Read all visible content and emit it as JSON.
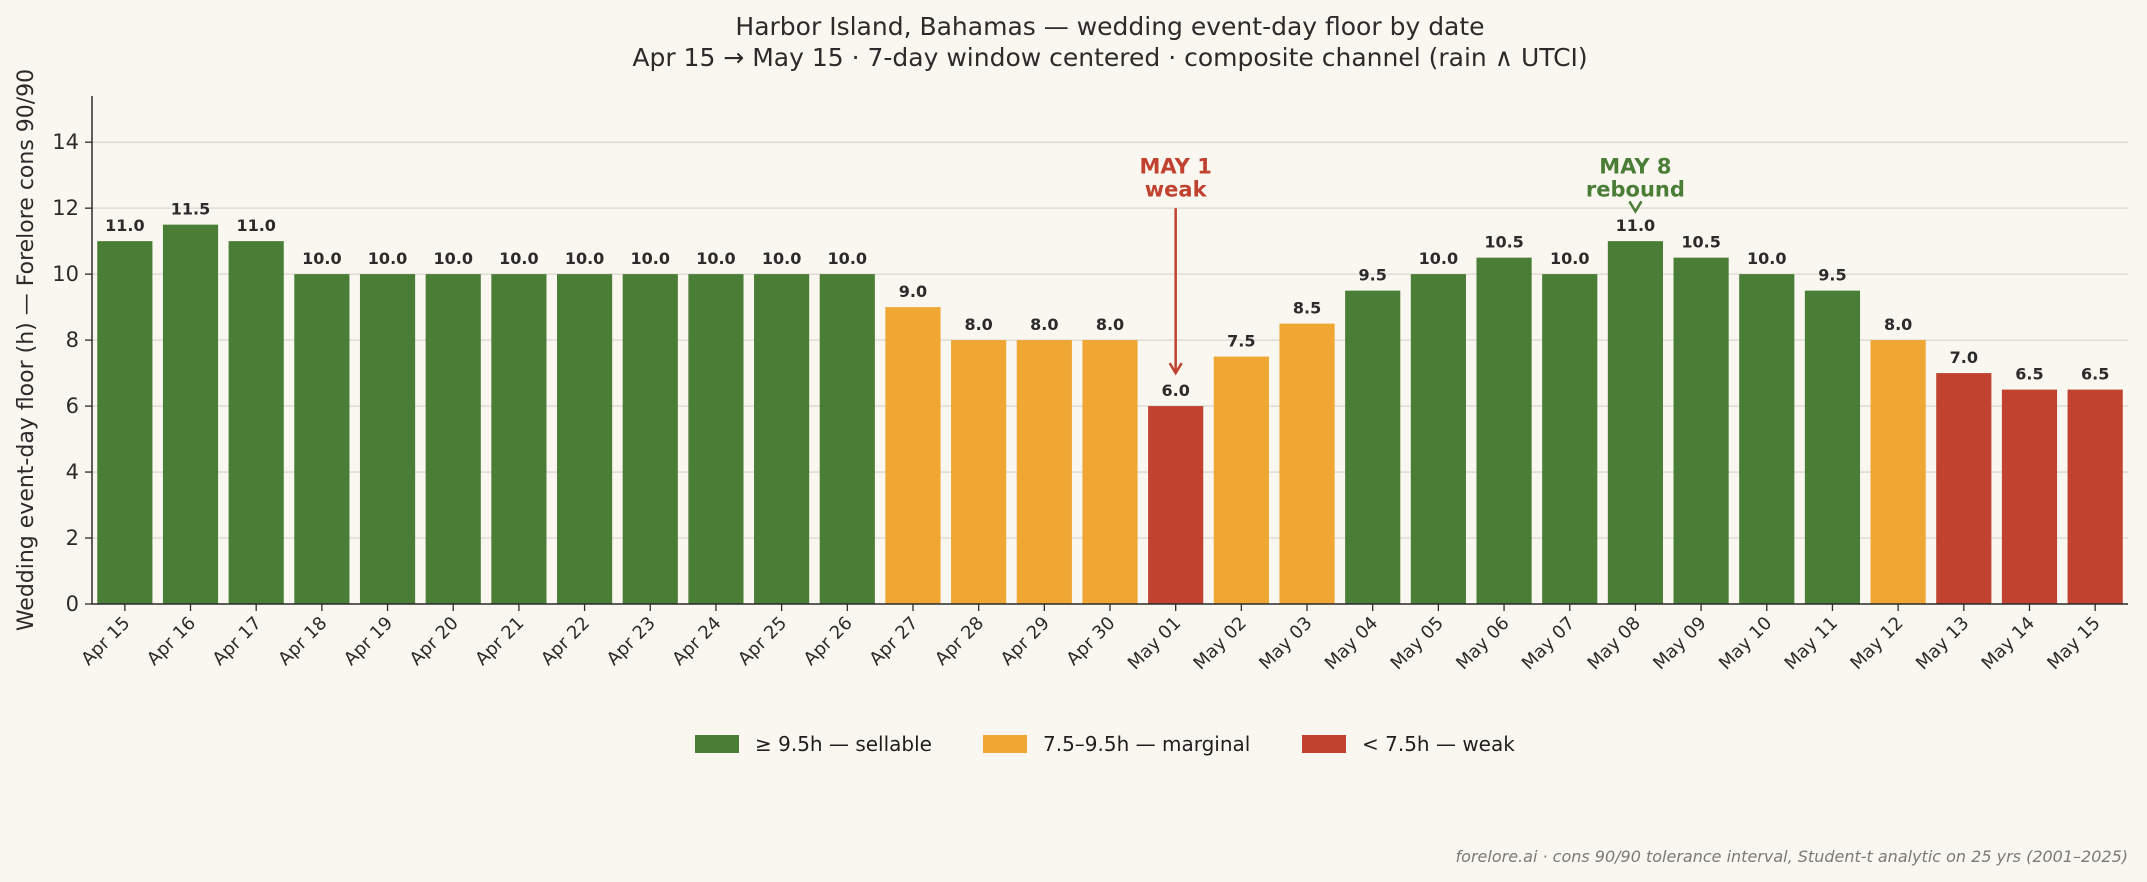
{
  "chart_data": {
    "type": "bar",
    "title": "Harbor Island, Bahamas — wedding event-day floor by date",
    "subtitle": "Apr 15 → May 15 · 7-day window centered · composite channel (rain ∧ UTCI)",
    "ylabel": "Wedding event-day floor (h) — Forelore cons 90/90",
    "xlabel": "",
    "ylim": [
      0,
      15.4
    ],
    "yticks": [
      "0",
      "2",
      "4",
      "6",
      "8",
      "10",
      "12",
      "14"
    ],
    "grid": "horizontal",
    "categories": [
      "Apr 15",
      "Apr 16",
      "Apr 17",
      "Apr 18",
      "Apr 19",
      "Apr 20",
      "Apr 21",
      "Apr 22",
      "Apr 23",
      "Apr 24",
      "Apr 25",
      "Apr 26",
      "Apr 27",
      "Apr 28",
      "Apr 29",
      "Apr 30",
      "May 01",
      "May 02",
      "May 03",
      "May 04",
      "May 05",
      "May 06",
      "May 07",
      "May 08",
      "May 09",
      "May 10",
      "May 11",
      "May 12",
      "May 13",
      "May 14",
      "May 15"
    ],
    "values": [
      11.0,
      11.5,
      11.0,
      10.0,
      10.0,
      10.0,
      10.0,
      10.0,
      10.0,
      10.0,
      10.0,
      10.0,
      9.0,
      8.0,
      8.0,
      8.0,
      6.0,
      7.5,
      8.5,
      9.5,
      10.0,
      10.5,
      10.0,
      11.0,
      10.5,
      10.0,
      9.5,
      8.0,
      7.0,
      6.5,
      6.5
    ],
    "value_labels": [
      "11.0",
      "11.5",
      "11.0",
      "10.0",
      "10.0",
      "10.0",
      "10.0",
      "10.0",
      "10.0",
      "10.0",
      "10.0",
      "10.0",
      "9.0",
      "8.0",
      "8.0",
      "8.0",
      "6.0",
      "7.5",
      "8.5",
      "9.5",
      "10.0",
      "10.5",
      "10.0",
      "11.0",
      "10.5",
      "10.0",
      "9.5",
      "8.0",
      "7.0",
      "6.5",
      "6.5"
    ],
    "bar_classes": [
      "sellable",
      "sellable",
      "sellable",
      "sellable",
      "sellable",
      "sellable",
      "sellable",
      "sellable",
      "sellable",
      "sellable",
      "sellable",
      "sellable",
      "marginal",
      "marginal",
      "marginal",
      "marginal",
      "weak",
      "marginal",
      "marginal",
      "sellable",
      "sellable",
      "sellable",
      "sellable",
      "sellable",
      "sellable",
      "sellable",
      "sellable",
      "marginal",
      "weak",
      "weak",
      "weak"
    ],
    "colors": {
      "sellable": "#4a7d36",
      "marginal": "#efa633",
      "weak": "#c0422f",
      "background": "#faf7f0",
      "grid": "#d9d6cf",
      "axis": "#2b2b2b"
    },
    "legend": {
      "placement": "bottom-center",
      "entries": [
        {
          "key": "sellable",
          "label": "≥ 9.5h — sellable"
        },
        {
          "key": "marginal",
          "label": "7.5–9.5h — marginal"
        },
        {
          "key": "weak",
          "label": "< 7.5h — weak"
        }
      ]
    },
    "annotations": [
      {
        "category": "May 01",
        "line1": "MAY 1",
        "line2": "weak",
        "color": "#c0422f",
        "arrow_to_value": 7.0,
        "arrow_from_value": 12.3
      },
      {
        "category": "May 08",
        "line1": "MAY 8",
        "line2": "rebound",
        "color": "#4a7d36",
        "arrow_to_value": 11.9,
        "arrow_from_value": 12.3
      }
    ]
  },
  "footer": "forelore.ai · cons 90/90 tolerance interval, Student-t analytic on 25 yrs (2001–2025)"
}
